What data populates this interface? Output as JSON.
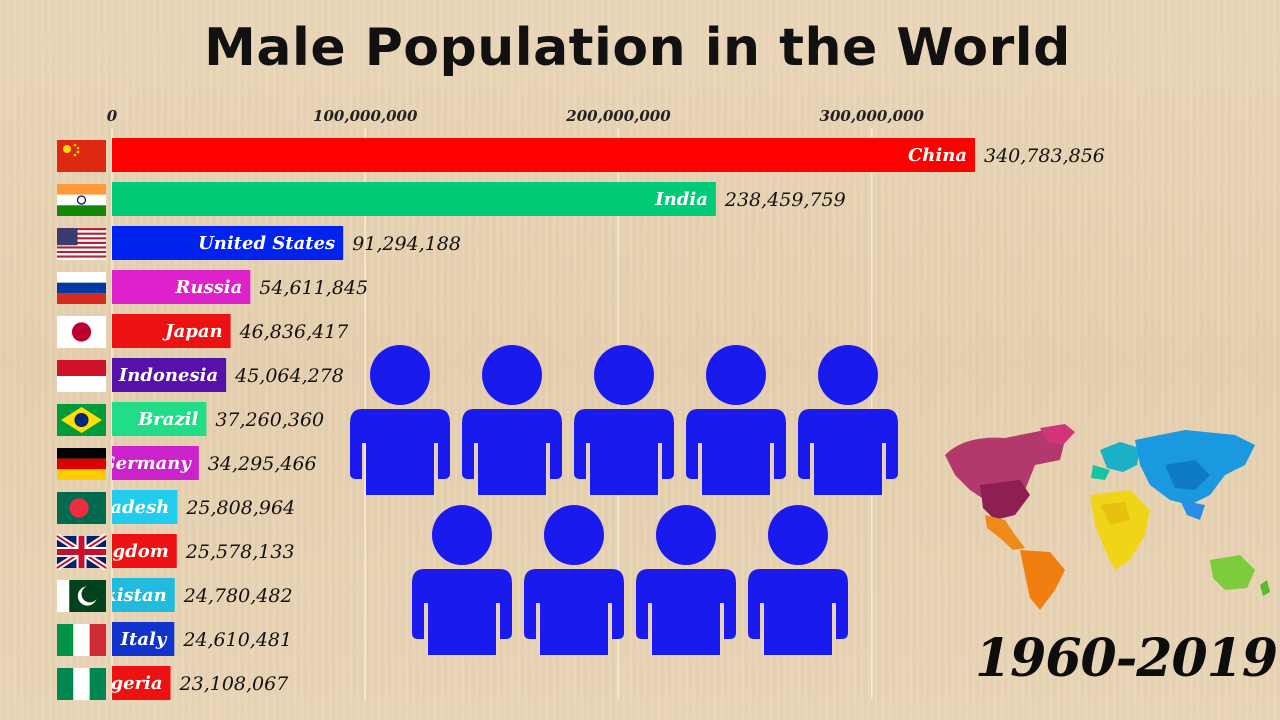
{
  "title": "Male Population in the World",
  "years_label": "1960-2019",
  "chart_data": {
    "type": "bar",
    "orientation": "horizontal",
    "title": "Male Population in the World",
    "xlim": [
      0,
      340783856
    ],
    "x_ticks": [
      0,
      100000000,
      200000000,
      300000000
    ],
    "x_tick_labels": [
      "0",
      "100,000,000",
      "200,000,000",
      "300,000,000"
    ],
    "grid": true,
    "bars": [
      {
        "label": "China",
        "value": 340783856,
        "value_label": "340,783,856",
        "color": "#ff0000",
        "flag": "china"
      },
      {
        "label": "India",
        "value": 238459759,
        "value_label": "238,459,759",
        "color": "#00cc77",
        "flag": "india"
      },
      {
        "label": "United States",
        "value": 91294188,
        "value_label": "91,294,188",
        "color": "#0022ee",
        "flag": "usa"
      },
      {
        "label": "Russia",
        "value": 54611845,
        "value_label": "54,611,845",
        "color": "#dd22cc",
        "flag": "russia"
      },
      {
        "label": "Japan",
        "value": 46836417,
        "value_label": "46,836,417",
        "color": "#ee1111",
        "flag": "japan"
      },
      {
        "label": "Indonesia",
        "value": 45064278,
        "value_label": "45,064,278",
        "color": "#5511aa",
        "flag": "indonesia"
      },
      {
        "label": "Brazil",
        "value": 37260360,
        "value_label": "37,260,360",
        "color": "#22dd88",
        "flag": "brazil"
      },
      {
        "label": "Germany",
        "value": 34295466,
        "value_label": "34,295,466",
        "color": "#cc22cc",
        "flag": "germany"
      },
      {
        "label": "Bangladesh",
        "value": 25808964,
        "value_label": "25,808,964",
        "color": "#22ccee",
        "flag": "bangladesh"
      },
      {
        "label": "United Kingdom",
        "value": 25578133,
        "value_label": "25,578,133",
        "color": "#ee1111",
        "flag": "uk"
      },
      {
        "label": "Pakistan",
        "value": 24780482,
        "value_label": "24,780,482",
        "color": "#22bbdd",
        "flag": "pakistan"
      },
      {
        "label": "Italy",
        "value": 24610481,
        "value_label": "24,610,481",
        "color": "#1133cc",
        "flag": "italy"
      },
      {
        "label": "Nigeria",
        "value": 23108067,
        "value_label": "23,108,067",
        "color": "#ee1111",
        "flag": "nigeria"
      }
    ]
  },
  "decor": {
    "people_icon": "person-icon",
    "people_color": "#1a1aee",
    "map_icon": "world-map-icon"
  }
}
